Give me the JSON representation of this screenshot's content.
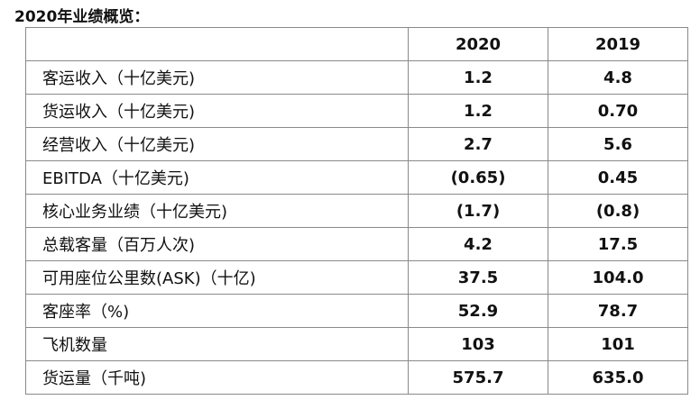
{
  "title": "2020年业绩概览：",
  "table": {
    "header": [
      "",
      "2020",
      "2019"
    ],
    "rows": [
      {
        "label": "客运收入（十亿美元)",
        "v2020": "1.2",
        "v2019": "4.8"
      },
      {
        "label": "货运收入（十亿美元)",
        "v2020": "1.2",
        "v2019": "0.70"
      },
      {
        "label": "经营收入（十亿美元)",
        "v2020": "2.7",
        "v2019": "5.6"
      },
      {
        "label": "EBITDA（十亿美元)",
        "v2020": "(0.65)",
        "v2019": "0.45"
      },
      {
        "label": "核心业务业绩（十亿美元)",
        "v2020": "(1.7)",
        "v2019": "(0.8)"
      },
      {
        "label": "总载客量（百万人次)",
        "v2020": "4.2",
        "v2019": "17.5"
      },
      {
        "label": "可用座位公里数(ASK)（十亿)",
        "v2020": "37.5",
        "v2019": "104.0"
      },
      {
        "label": "客座率（%)",
        "v2020": "52.9",
        "v2019": "78.7"
      },
      {
        "label": "飞机数量",
        "v2020": "103",
        "v2019": "101"
      },
      {
        "label": "货运量（千吨)",
        "v2020": "575.7",
        "v2019": "635.0"
      }
    ]
  }
}
